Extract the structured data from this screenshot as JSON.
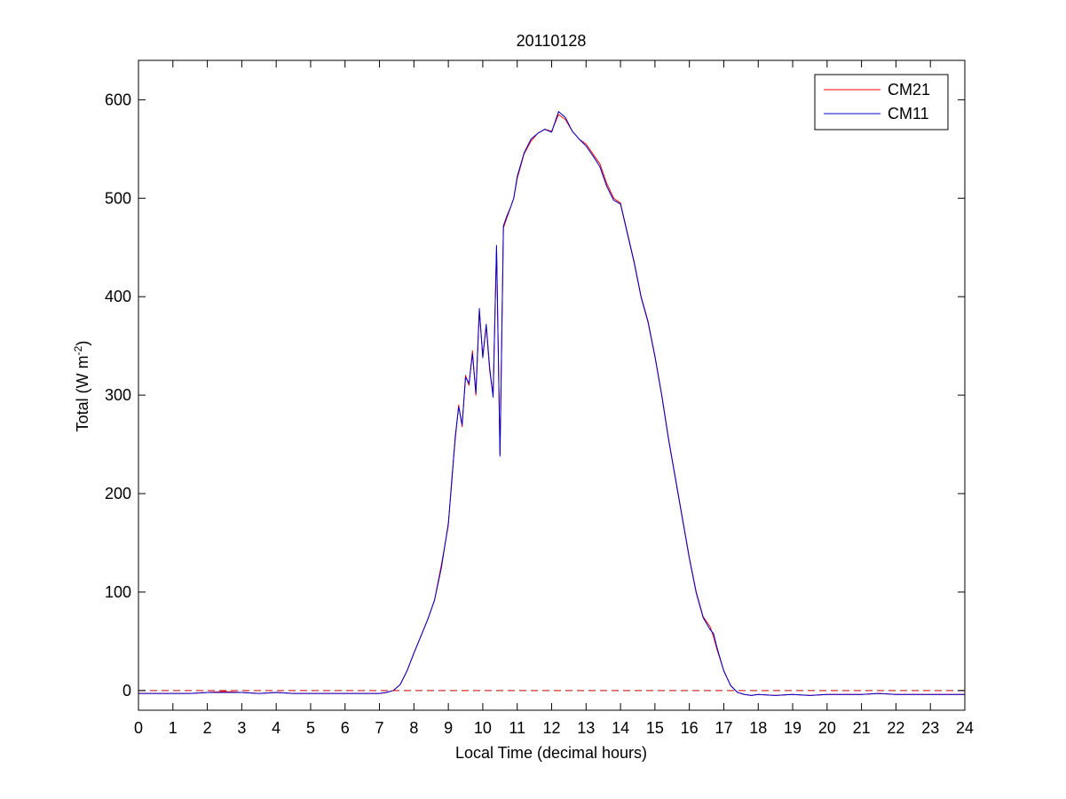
{
  "chart_data": {
    "type": "line",
    "title": "20110128",
    "xlabel": "Local Time (decimal hours)",
    "ylabel": {
      "base": "Total (W m",
      "sup": "-2",
      "close": ")"
    },
    "xlim": [
      0,
      24
    ],
    "ylim": [
      -20,
      640
    ],
    "xticks": [
      0,
      1,
      2,
      3,
      4,
      5,
      6,
      7,
      8,
      9,
      10,
      11,
      12,
      13,
      14,
      15,
      16,
      17,
      18,
      19,
      20,
      21,
      22,
      23,
      24
    ],
    "yticks": [
      0,
      100,
      200,
      300,
      400,
      500,
      600
    ],
    "grid": false,
    "legend_position": "top-right",
    "reference_line": {
      "y": 0,
      "style": "dashed",
      "color": "#cc0000"
    },
    "series": [
      {
        "name": "CM21",
        "color": "#ff0000",
        "x": [
          0,
          0.5,
          1,
          1.5,
          2,
          2.5,
          3,
          3.5,
          4,
          4.5,
          5,
          5.5,
          6,
          6.5,
          7,
          7.2,
          7.4,
          7.6,
          7.8,
          8,
          8.2,
          8.4,
          8.6,
          8.8,
          9,
          9.1,
          9.2,
          9.3,
          9.4,
          9.5,
          9.6,
          9.7,
          9.8,
          9.9,
          10,
          10.1,
          10.2,
          10.3,
          10.4,
          10.5,
          10.6,
          10.7,
          10.8,
          10.9,
          11,
          11.2,
          11.4,
          11.6,
          11.8,
          12,
          12.2,
          12.4,
          12.6,
          12.8,
          13,
          13.2,
          13.4,
          13.6,
          13.8,
          14,
          14.2,
          14.4,
          14.6,
          14.8,
          15,
          15.2,
          15.4,
          15.6,
          15.8,
          16,
          16.2,
          16.4,
          16.6,
          16.7,
          16.8,
          17,
          17.2,
          17.4,
          17.6,
          17.8,
          18,
          18.5,
          19,
          19.5,
          20,
          20.5,
          21,
          21.5,
          22,
          22.5,
          23,
          23.5,
          24
        ],
        "y": [
          -3,
          -3,
          -3,
          -3,
          -2,
          -1,
          -2,
          -3,
          -2,
          -3,
          -3,
          -3,
          -3,
          -3,
          -3,
          -2,
          0,
          6,
          20,
          38,
          55,
          72,
          92,
          128,
          168,
          215,
          255,
          290,
          268,
          320,
          310,
          345,
          300,
          385,
          340,
          370,
          325,
          300,
          450,
          240,
          470,
          480,
          490,
          500,
          520,
          545,
          558,
          566,
          570,
          568,
          585,
          580,
          568,
          560,
          555,
          545,
          535,
          515,
          500,
          495,
          465,
          435,
          400,
          375,
          340,
          300,
          255,
          215,
          175,
          135,
          100,
          75,
          65,
          55,
          42,
          20,
          5,
          -2,
          -4,
          -5,
          -4,
          -5,
          -4,
          -5,
          -4,
          -4,
          -4,
          -3,
          -4,
          -4,
          -4,
          -4,
          -4
        ],
        "precision_note_hidden": false
      },
      {
        "name": "CM11",
        "color": "#0000cc",
        "x": [
          0,
          0.5,
          1,
          1.5,
          2,
          2.5,
          3,
          3.5,
          4,
          4.5,
          5,
          5.5,
          6,
          6.5,
          7,
          7.2,
          7.4,
          7.6,
          7.8,
          8,
          8.2,
          8.4,
          8.6,
          8.8,
          9,
          9.1,
          9.2,
          9.3,
          9.4,
          9.5,
          9.6,
          9.7,
          9.8,
          9.9,
          10,
          10.1,
          10.2,
          10.3,
          10.4,
          10.5,
          10.6,
          10.7,
          10.8,
          10.9,
          11,
          11.2,
          11.4,
          11.6,
          11.8,
          12,
          12.2,
          12.4,
          12.6,
          12.8,
          13,
          13.2,
          13.4,
          13.6,
          13.8,
          14,
          14.2,
          14.4,
          14.6,
          14.8,
          15,
          15.2,
          15.4,
          15.6,
          15.8,
          16,
          16.2,
          16.4,
          16.6,
          16.7,
          16.8,
          17,
          17.2,
          17.4,
          17.6,
          17.8,
          18,
          18.5,
          19,
          19.5,
          20,
          20.5,
          21,
          21.5,
          22,
          22.5,
          23,
          23.5,
          24
        ],
        "y": [
          -3,
          -3,
          -3,
          -3,
          -2,
          -2,
          -2,
          -3,
          -2,
          -3,
          -3,
          -3,
          -3,
          -3,
          -3,
          -2,
          0,
          6,
          20,
          38,
          55,
          72,
          92,
          125,
          170,
          212,
          258,
          288,
          270,
          318,
          312,
          342,
          302,
          388,
          338,
          372,
          328,
          298,
          452,
          238,
          472,
          482,
          490,
          500,
          522,
          546,
          560,
          566,
          570,
          567,
          588,
          582,
          568,
          560,
          553,
          543,
          532,
          512,
          498,
          494,
          464,
          434,
          399,
          374,
          339,
          299,
          254,
          214,
          174,
          134,
          99,
          74,
          62,
          58,
          44,
          20,
          5,
          -2,
          -4,
          -5,
          -4,
          -5,
          -4,
          -5,
          -4,
          -4,
          -4,
          -3,
          -4,
          -4,
          -4,
          -4,
          -4
        ]
      }
    ]
  }
}
